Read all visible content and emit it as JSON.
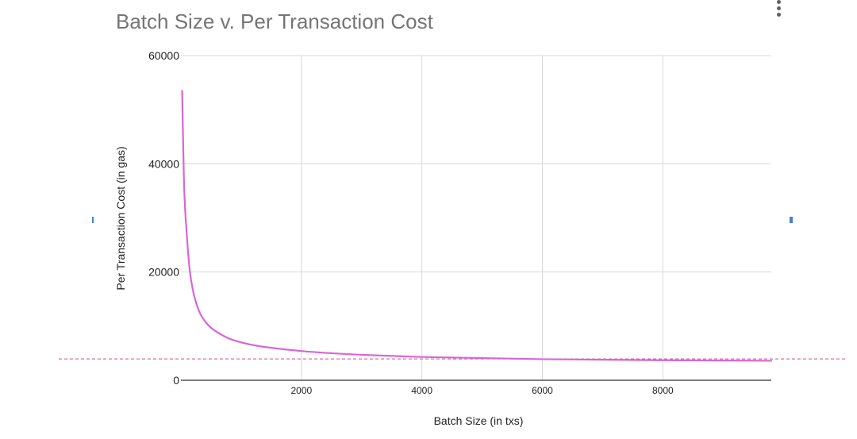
{
  "chart_data": {
    "type": "line",
    "title": "Batch Size v. Per Transaction Cost",
    "xlabel": "Batch Size (in txs)",
    "ylabel": "Per Transaction Cost (in gas)",
    "xlim": [
      0,
      9800
    ],
    "ylim": [
      0,
      60000
    ],
    "x_ticks": [
      "2000",
      "4000",
      "6000",
      "8000"
    ],
    "y_ticks": [
      "0",
      "20000",
      "40000",
      "60000"
    ],
    "grid": true,
    "legend": "none",
    "series": [
      {
        "color": "#d966d6",
        "x": [
          20,
          50,
          100,
          150,
          200,
          300,
          400,
          500,
          600,
          800,
          1000,
          1250,
          1500,
          2000,
          2500,
          3000,
          4000,
          5000,
          6000,
          7000,
          8000,
          9000,
          9800
        ],
        "y": [
          53500,
          37000,
          26500,
          20000,
          16600,
          12800,
          10900,
          9700,
          8900,
          7700,
          7000,
          6400,
          6000,
          5400,
          5000,
          4700,
          4300,
          4100,
          3900,
          3800,
          3700,
          3650,
          3600
        ]
      }
    ],
    "reference_line": {
      "y": 3800,
      "style": "dashed",
      "color": "#d6478f"
    }
  },
  "colors": {
    "grid": "#d9d9d9",
    "axis": "#333333",
    "title": "#757575",
    "handle": "#4a7fd8"
  },
  "ui": {
    "menu_icon": "more-vert-icon"
  }
}
